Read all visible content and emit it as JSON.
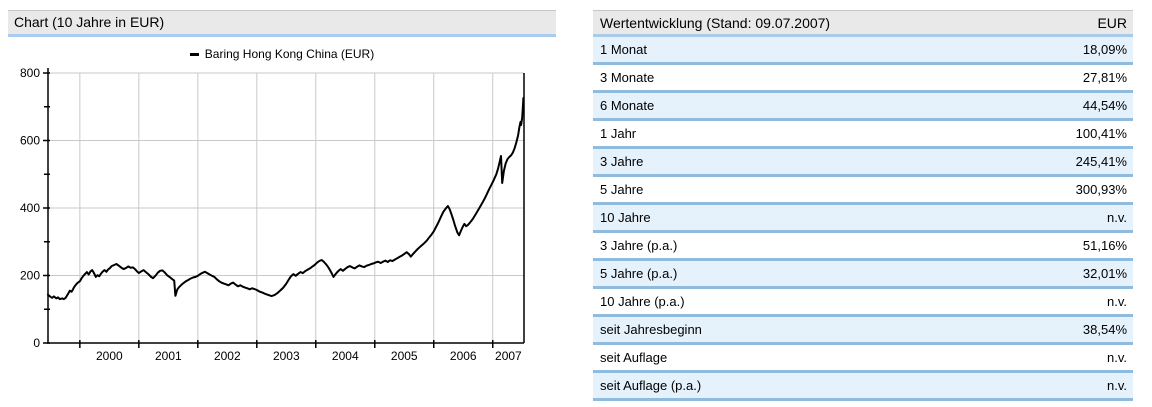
{
  "left_panel": {
    "title": "Chart (10 Jahre in EUR)"
  },
  "chart_data": {
    "type": "line",
    "title": "Chart (10 Jahre in EUR)",
    "legend": [
      {
        "label": "Baring Hong Kong China (EUR)",
        "color": "#000000",
        "position": "top-center"
      }
    ],
    "grid": true,
    "x_axis": {
      "range": [
        1999.46,
        2007.53
      ],
      "ticks": [
        2000,
        2001,
        2002,
        2003,
        2004,
        2005,
        2006,
        2007
      ],
      "tick_labels": [
        "2000",
        "2001",
        "2002",
        "2003",
        "2004",
        "2005",
        "2006",
        "2007"
      ]
    },
    "y_axis": {
      "range": [
        0,
        800
      ],
      "major_ticks": [
        0,
        200,
        400,
        600,
        800
      ],
      "minor_ticks": [
        100,
        300,
        500,
        700
      ],
      "tick_labels": [
        "0",
        "200",
        "400",
        "600",
        "800"
      ]
    },
    "series": [
      {
        "name": "Baring Hong Kong China (EUR)",
        "color": "#000000",
        "points": [
          [
            1999.46,
            143
          ],
          [
            1999.5,
            137
          ],
          [
            1999.53,
            134
          ],
          [
            1999.56,
            138
          ],
          [
            1999.6,
            132
          ],
          [
            1999.63,
            135
          ],
          [
            1999.66,
            130
          ],
          [
            1999.7,
            132
          ],
          [
            1999.73,
            130
          ],
          [
            1999.76,
            134
          ],
          [
            1999.8,
            146
          ],
          [
            1999.83,
            155
          ],
          [
            1999.86,
            152
          ],
          [
            1999.88,
            158
          ],
          [
            1999.9,
            165
          ],
          [
            1999.93,
            172
          ],
          [
            1999.96,
            178
          ],
          [
            2000.0,
            183
          ],
          [
            2000.03,
            192
          ],
          [
            2000.06,
            199
          ],
          [
            2000.09,
            205
          ],
          [
            2000.12,
            210
          ],
          [
            2000.15,
            203
          ],
          [
            2000.18,
            212
          ],
          [
            2000.21,
            216
          ],
          [
            2000.24,
            207
          ],
          [
            2000.27,
            196
          ],
          [
            2000.3,
            201
          ],
          [
            2000.33,
            198
          ],
          [
            2000.36,
            206
          ],
          [
            2000.39,
            212
          ],
          [
            2000.42,
            216
          ],
          [
            2000.45,
            211
          ],
          [
            2000.48,
            218
          ],
          [
            2000.51,
            222
          ],
          [
            2000.54,
            228
          ],
          [
            2000.58,
            231
          ],
          [
            2000.62,
            234
          ],
          [
            2000.66,
            229
          ],
          [
            2000.7,
            224
          ],
          [
            2000.74,
            219
          ],
          [
            2000.78,
            222
          ],
          [
            2000.82,
            227
          ],
          [
            2000.86,
            223
          ],
          [
            2000.9,
            224
          ],
          [
            2000.94,
            218
          ],
          [
            2000.97,
            212
          ],
          [
            2001.0,
            207
          ],
          [
            2001.04,
            212
          ],
          [
            2001.08,
            216
          ],
          [
            2001.12,
            210
          ],
          [
            2001.16,
            204
          ],
          [
            2001.2,
            197
          ],
          [
            2001.24,
            192
          ],
          [
            2001.28,
            199
          ],
          [
            2001.32,
            208
          ],
          [
            2001.36,
            214
          ],
          [
            2001.4,
            215
          ],
          [
            2001.44,
            209
          ],
          [
            2001.48,
            201
          ],
          [
            2001.52,
            196
          ],
          [
            2001.56,
            190
          ],
          [
            2001.6,
            185
          ],
          [
            2001.62,
            140
          ],
          [
            2001.65,
            158
          ],
          [
            2001.68,
            165
          ],
          [
            2001.72,
            172
          ],
          [
            2001.76,
            178
          ],
          [
            2001.8,
            183
          ],
          [
            2001.84,
            187
          ],
          [
            2001.88,
            191
          ],
          [
            2001.92,
            194
          ],
          [
            2001.96,
            196
          ],
          [
            2002.0,
            199
          ],
          [
            2002.04,
            204
          ],
          [
            2002.08,
            208
          ],
          [
            2002.12,
            211
          ],
          [
            2002.16,
            207
          ],
          [
            2002.2,
            203
          ],
          [
            2002.24,
            199
          ],
          [
            2002.28,
            196
          ],
          [
            2002.32,
            189
          ],
          [
            2002.36,
            183
          ],
          [
            2002.4,
            179
          ],
          [
            2002.44,
            176
          ],
          [
            2002.48,
            174
          ],
          [
            2002.52,
            171
          ],
          [
            2002.56,
            176
          ],
          [
            2002.6,
            179
          ],
          [
            2002.64,
            173
          ],
          [
            2002.68,
            168
          ],
          [
            2002.72,
            171
          ],
          [
            2002.76,
            167
          ],
          [
            2002.8,
            164
          ],
          [
            2002.84,
            162
          ],
          [
            2002.88,
            159
          ],
          [
            2002.92,
            162
          ],
          [
            2002.96,
            160
          ],
          [
            2003.0,
            157
          ],
          [
            2003.05,
            152
          ],
          [
            2003.1,
            149
          ],
          [
            2003.15,
            145
          ],
          [
            2003.2,
            142
          ],
          [
            2003.25,
            139
          ],
          [
            2003.3,
            142
          ],
          [
            2003.35,
            148
          ],
          [
            2003.4,
            156
          ],
          [
            2003.45,
            164
          ],
          [
            2003.5,
            176
          ],
          [
            2003.55,
            190
          ],
          [
            2003.58,
            198
          ],
          [
            2003.62,
            204
          ],
          [
            2003.66,
            199
          ],
          [
            2003.7,
            205
          ],
          [
            2003.74,
            210
          ],
          [
            2003.78,
            207
          ],
          [
            2003.82,
            213
          ],
          [
            2003.86,
            217
          ],
          [
            2003.9,
            221
          ],
          [
            2003.94,
            226
          ],
          [
            2003.98,
            231
          ],
          [
            2004.02,
            238
          ],
          [
            2004.06,
            243
          ],
          [
            2004.1,
            246
          ],
          [
            2004.14,
            240
          ],
          [
            2004.18,
            232
          ],
          [
            2004.22,
            222
          ],
          [
            2004.26,
            210
          ],
          [
            2004.3,
            196
          ],
          [
            2004.34,
            205
          ],
          [
            2004.38,
            213
          ],
          [
            2004.42,
            219
          ],
          [
            2004.46,
            214
          ],
          [
            2004.5,
            220
          ],
          [
            2004.54,
            225
          ],
          [
            2004.58,
            228
          ],
          [
            2004.62,
            224
          ],
          [
            2004.66,
            221
          ],
          [
            2004.7,
            226
          ],
          [
            2004.74,
            230
          ],
          [
            2004.78,
            227
          ],
          [
            2004.82,
            225
          ],
          [
            2004.86,
            229
          ],
          [
            2004.9,
            231
          ],
          [
            2004.94,
            234
          ],
          [
            2004.98,
            236
          ],
          [
            2005.02,
            239
          ],
          [
            2005.06,
            241
          ],
          [
            2005.1,
            237
          ],
          [
            2005.14,
            241
          ],
          [
            2005.18,
            244
          ],
          [
            2005.22,
            240
          ],
          [
            2005.26,
            245
          ],
          [
            2005.3,
            243
          ],
          [
            2005.34,
            247
          ],
          [
            2005.38,
            251
          ],
          [
            2005.42,
            255
          ],
          [
            2005.46,
            259
          ],
          [
            2005.5,
            264
          ],
          [
            2005.54,
            269
          ],
          [
            2005.58,
            263
          ],
          [
            2005.61,
            256
          ],
          [
            2005.64,
            262
          ],
          [
            2005.68,
            270
          ],
          [
            2005.72,
            277
          ],
          [
            2005.76,
            284
          ],
          [
            2005.8,
            290
          ],
          [
            2005.84,
            296
          ],
          [
            2005.88,
            303
          ],
          [
            2005.92,
            312
          ],
          [
            2005.96,
            321
          ],
          [
            2006.0,
            331
          ],
          [
            2006.04,
            344
          ],
          [
            2006.08,
            358
          ],
          [
            2006.12,
            373
          ],
          [
            2006.16,
            388
          ],
          [
            2006.2,
            398
          ],
          [
            2006.24,
            406
          ],
          [
            2006.27,
            396
          ],
          [
            2006.3,
            382
          ],
          [
            2006.33,
            366
          ],
          [
            2006.36,
            348
          ],
          [
            2006.4,
            328
          ],
          [
            2006.43,
            319
          ],
          [
            2006.46,
            332
          ],
          [
            2006.49,
            344
          ],
          [
            2006.52,
            353
          ],
          [
            2006.55,
            346
          ],
          [
            2006.58,
            350
          ],
          [
            2006.62,
            358
          ],
          [
            2006.66,
            367
          ],
          [
            2006.7,
            378
          ],
          [
            2006.74,
            390
          ],
          [
            2006.78,
            402
          ],
          [
            2006.82,
            414
          ],
          [
            2006.86,
            427
          ],
          [
            2006.9,
            441
          ],
          [
            2006.94,
            456
          ],
          [
            2006.98,
            470
          ],
          [
            2007.02,
            484
          ],
          [
            2007.06,
            500
          ],
          [
            2007.09,
            516
          ],
          [
            2007.12,
            538
          ],
          [
            2007.14,
            554
          ],
          [
            2007.16,
            474
          ],
          [
            2007.19,
            510
          ],
          [
            2007.22,
            532
          ],
          [
            2007.25,
            545
          ],
          [
            2007.28,
            551
          ],
          [
            2007.31,
            556
          ],
          [
            2007.34,
            564
          ],
          [
            2007.37,
            577
          ],
          [
            2007.4,
            594
          ],
          [
            2007.43,
            615
          ],
          [
            2007.45,
            638
          ],
          [
            2007.47,
            655
          ],
          [
            2007.48,
            646
          ],
          [
            2007.5,
            668
          ],
          [
            2007.51,
            695
          ],
          [
            2007.52,
            726
          ]
        ]
      }
    ]
  },
  "table": {
    "header": {
      "label": "Wertentwicklung (Stand: 09.07.2007)",
      "currency": "EUR"
    },
    "rows": [
      {
        "label": "1 Monat",
        "value": "18,09%"
      },
      {
        "label": "3 Monate",
        "value": "27,81%"
      },
      {
        "label": "6 Monate",
        "value": "44,54%"
      },
      {
        "label": "1 Jahr",
        "value": "100,41%"
      },
      {
        "label": "3 Jahre",
        "value": "245,41%"
      },
      {
        "label": "5 Jahre",
        "value": "300,93%"
      },
      {
        "label": "10 Jahre",
        "value": "n.v."
      },
      {
        "label": "3 Jahre (p.a.)",
        "value": "51,16%"
      },
      {
        "label": "5 Jahre (p.a.)",
        "value": "32,01%"
      },
      {
        "label": "10 Jahre (p.a.)",
        "value": "n.v."
      },
      {
        "label": "seit Jahresbeginn",
        "value": "38,54%"
      },
      {
        "label": "seit Auflage",
        "value": "n.v."
      },
      {
        "label": "seit Auflage (p.a.)",
        "value": "n.v."
      }
    ]
  },
  "colors": {
    "header_bg": "#e9e9e9",
    "header_top_border": "#c6c6c6",
    "chart_header_underline": "#aaccee",
    "table_header_underline": "#a9cbe9",
    "row_separator": "#8fbbdf",
    "row_alt_bg": "#e5f1fb",
    "grid": "#c9c9c9",
    "series_line": "#000000"
  }
}
